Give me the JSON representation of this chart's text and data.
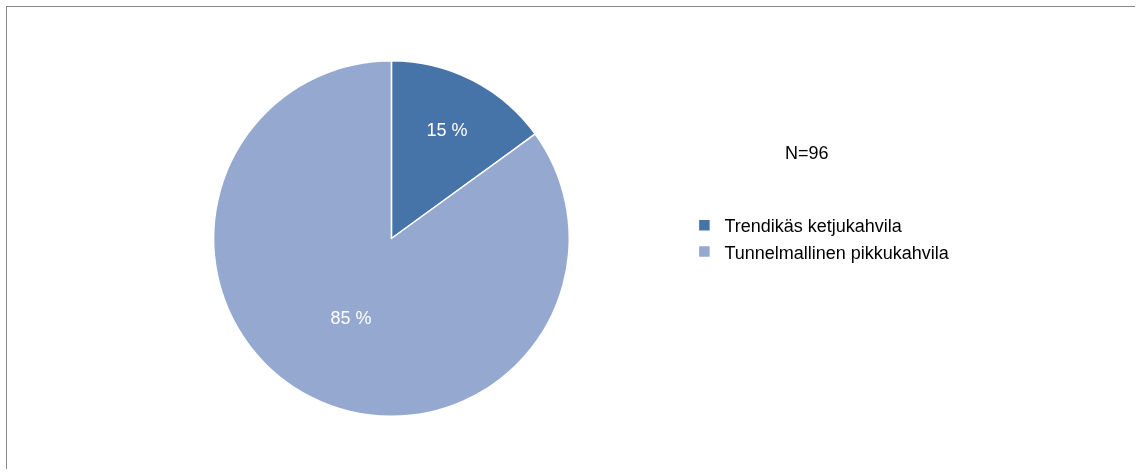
{
  "chart_data": {
    "type": "pie",
    "categories": [
      "Trendikäs ketjukahvila",
      "Tunnelmallinen pikkukahvila"
    ],
    "values": [
      15,
      85
    ],
    "colors": [
      "#4673a8",
      "#95a9d0"
    ],
    "value_labels": [
      "15 %",
      "85 %"
    ],
    "annotations": [
      "N=96"
    ],
    "legend": "right"
  }
}
